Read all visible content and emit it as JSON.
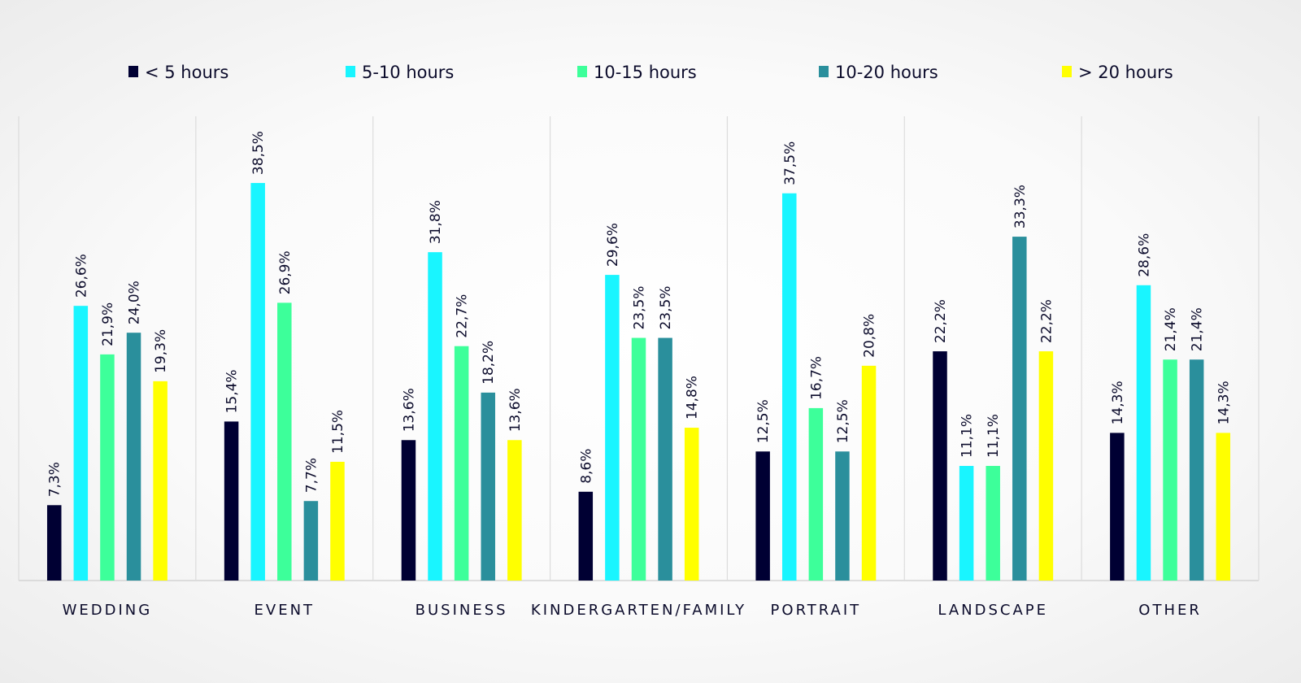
{
  "chart_data": {
    "type": "bar",
    "title": "",
    "xlabel": "",
    "ylabel": "",
    "ylim": [
      0,
      40
    ],
    "grid": false,
    "legend_position": "top",
    "categories": [
      "WEDDING",
      "EVENT",
      "BUSINESS",
      "KINDERGARTEN/FAMILY",
      "PORTRAIT",
      "LANDSCAPE",
      "OTHER"
    ],
    "series": [
      {
        "name": "< 5 hours",
        "color": "#000033",
        "values": [
          7.3,
          15.4,
          13.6,
          8.6,
          12.5,
          22.2,
          14.3
        ],
        "labels": [
          "7,3%",
          "15,4%",
          "13,6%",
          "8,6%",
          "12,5%",
          "22,2%",
          "14,3%"
        ]
      },
      {
        "name": "5-10 hours",
        "color": "#19f5ff",
        "values": [
          26.6,
          38.5,
          31.8,
          29.6,
          37.5,
          11.1,
          28.6
        ],
        "labels": [
          "26,6%",
          "38,5%",
          "31,8%",
          "29,6%",
          "37,5%",
          "11,1%",
          "28,6%"
        ]
      },
      {
        "name": "10-15 hours",
        "color": "#3dff9a",
        "values": [
          21.9,
          26.9,
          22.7,
          23.5,
          16.7,
          11.1,
          21.4
        ],
        "labels": [
          "21,9%",
          "26,9%",
          "22,7%",
          "23,5%",
          "16,7%",
          "11,1%",
          "21,4%"
        ]
      },
      {
        "name": "10-20 hours",
        "color": "#2a8f9c",
        "values": [
          24.0,
          7.7,
          18.2,
          23.5,
          12.5,
          33.3,
          21.4
        ],
        "labels": [
          "24,0%",
          "7,7%",
          "18,2%",
          "23,5%",
          "12,5%",
          "33,3%",
          "21,4%"
        ]
      },
      {
        "name": "> 20 hours",
        "color": "#ffff00",
        "values": [
          19.3,
          11.5,
          13.6,
          14.8,
          20.8,
          22.2,
          14.3
        ],
        "labels": [
          "19,3%",
          "11,5%",
          "13,6%",
          "14,8%",
          "20,8%",
          "22,2%",
          "14,3%"
        ]
      }
    ]
  }
}
